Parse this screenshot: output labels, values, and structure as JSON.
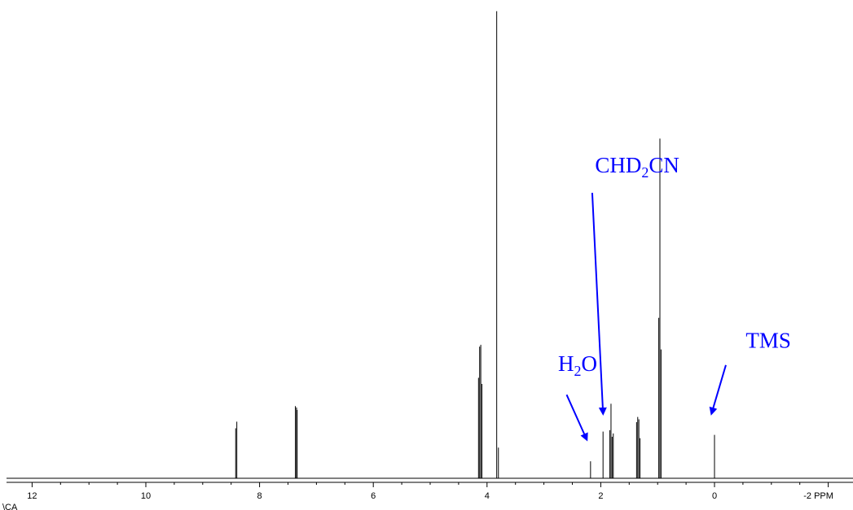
{
  "chart_data": {
    "type": "line",
    "title": "",
    "xlabel": "",
    "ylabel": "",
    "x_unit_label": "PPM",
    "x_reversed": true,
    "xlim": [
      13,
      -2.5
    ],
    "ylim": [
      0,
      100
    ],
    "grid": false,
    "x_ticks": [
      {
        "value": 12,
        "label": "12"
      },
      {
        "value": 10,
        "label": "10"
      },
      {
        "value": 8,
        "label": "8"
      },
      {
        "value": 6,
        "label": "6"
      },
      {
        "value": 4,
        "label": "4"
      },
      {
        "value": 2,
        "label": "2"
      },
      {
        "value": 0,
        "label": "0"
      },
      {
        "value": -2,
        "label": "-2 PPM"
      }
    ],
    "series": [
      {
        "line_color": "#000000",
        "peaks": [
          {
            "ppm": 8.42,
            "height": 10.6
          },
          {
            "ppm": 8.4,
            "height": 12.0
          },
          {
            "ppm": 7.37,
            "height": 15.3
          },
          {
            "ppm": 7.35,
            "height": 15.0
          },
          {
            "ppm": 7.34,
            "height": 14.5
          },
          {
            "ppm": 4.15,
            "height": 21.3
          },
          {
            "ppm": 4.13,
            "height": 27.9
          },
          {
            "ppm": 4.11,
            "height": 28.3
          },
          {
            "ppm": 4.09,
            "height": 20.0
          },
          {
            "ppm": 3.83,
            "height": 99.0
          },
          {
            "ppm": 3.8,
            "height": 6.5
          },
          {
            "ppm": 2.18,
            "height": 3.6
          },
          {
            "ppm": 1.96,
            "height": 9.9
          },
          {
            "ppm": 1.84,
            "height": 10.2
          },
          {
            "ppm": 1.82,
            "height": 15.8
          },
          {
            "ppm": 1.8,
            "height": 8.8
          },
          {
            "ppm": 1.78,
            "height": 9.5
          },
          {
            "ppm": 1.37,
            "height": 11.9
          },
          {
            "ppm": 1.35,
            "height": 13.0
          },
          {
            "ppm": 1.33,
            "height": 12.5
          },
          {
            "ppm": 1.31,
            "height": 8.5
          },
          {
            "ppm": 0.98,
            "height": 34.0
          },
          {
            "ppm": 0.96,
            "height": 72.0
          },
          {
            "ppm": 0.94,
            "height": 27.3
          },
          {
            "ppm": 0.0,
            "height": 9.2
          }
        ]
      }
    ],
    "annotations": [
      {
        "text": "CHD",
        "sub": "2",
        "text_after": "CN",
        "x_ppm": 2.1,
        "text_y": 64.8,
        "arrow_from": [
          2.15,
          60.5
        ],
        "arrow_to": [
          1.96,
          13.8
        ],
        "color": "#0000ff"
      },
      {
        "text": "H",
        "sub": "2",
        "text_after": "O",
        "x_ppm": 2.75,
        "text_y": 22.8,
        "arrow_from": [
          2.6,
          17.7
        ],
        "arrow_to": [
          2.25,
          8.3
        ],
        "color": "#0000ff"
      },
      {
        "text": "TMS",
        "sub": "",
        "text_after": "",
        "x_ppm": -0.55,
        "text_y": 27.7,
        "arrow_from": [
          -0.2,
          24.0
        ],
        "arrow_to": [
          0.05,
          13.8
        ],
        "color": "#0000ff"
      }
    ],
    "corner_label": "\\CA"
  }
}
